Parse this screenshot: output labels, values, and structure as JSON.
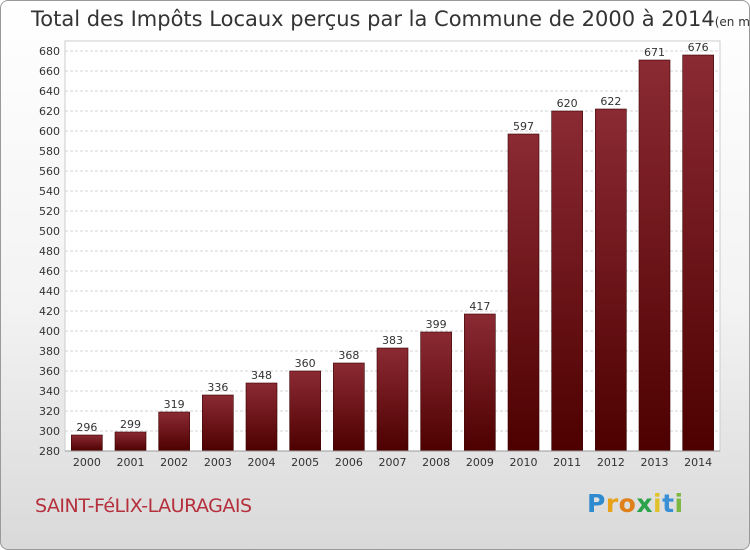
{
  "chart_data": {
    "type": "bar",
    "title": "Total des Impôts Locaux perçus par la Commune de 2000 à 2014",
    "subtitle": "(en milliers d'€)",
    "categories": [
      "2000",
      "2001",
      "2002",
      "2003",
      "2004",
      "2005",
      "2006",
      "2007",
      "2008",
      "2009",
      "2010",
      "2011",
      "2012",
      "2013",
      "2014"
    ],
    "values": [
      296,
      299,
      319,
      336,
      348,
      360,
      368,
      383,
      399,
      417,
      597,
      620,
      622,
      671,
      676
    ],
    "ylim": [
      280,
      690
    ],
    "yticks": [
      280,
      300,
      320,
      340,
      360,
      380,
      400,
      420,
      440,
      460,
      480,
      500,
      520,
      540,
      560,
      580,
      600,
      620,
      640,
      660,
      680
    ],
    "xlabel": "",
    "ylabel": "",
    "grid": true,
    "bar_color_top": "#8b2a33",
    "bar_color_bottom": "#4d0000"
  },
  "commune_name": "SAINT-FéLIX-LAURAGAIS",
  "logo": {
    "letters": [
      "P",
      "r",
      "o",
      "x",
      "i",
      "t",
      "i"
    ],
    "colors": [
      "#2e8bd0",
      "#e8a21a",
      "#e0801a",
      "#2aa34a",
      "#e2c22a",
      "#3a8fd6",
      "#7ab840"
    ]
  },
  "colors": {
    "commune_text": "#b5303c",
    "axis_text": "#333333"
  }
}
